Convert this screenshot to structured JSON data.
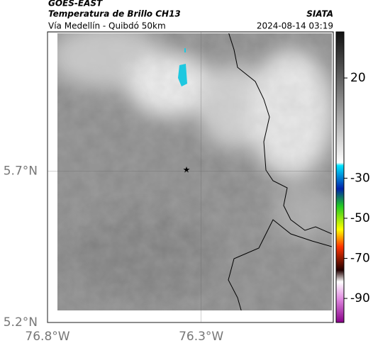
{
  "header": {
    "title": "GOES-EAST",
    "subtitle": "Temperatura de Brillo CH13",
    "source": "SIATA",
    "region": "Vía Medellín - Quibdó 50km",
    "timestamp": "2024-08-14 03:19"
  },
  "map": {
    "xlim": [
      -76.8,
      -75.87
    ],
    "ylim": [
      5.2,
      6.16
    ],
    "xticks": [
      {
        "value": -76.8,
        "label": "76.8°W"
      },
      {
        "value": -76.3,
        "label": "76.3°W"
      }
    ],
    "yticks": [
      {
        "value": 5.2,
        "label": "5.2°N"
      },
      {
        "value": 5.7,
        "label": "5.7°N"
      }
    ],
    "grid": true
  },
  "colorbar": {
    "vlim": [
      43,
      -102
    ],
    "ticks": [
      20,
      -30,
      -50,
      -70,
      -90
    ]
  }
}
